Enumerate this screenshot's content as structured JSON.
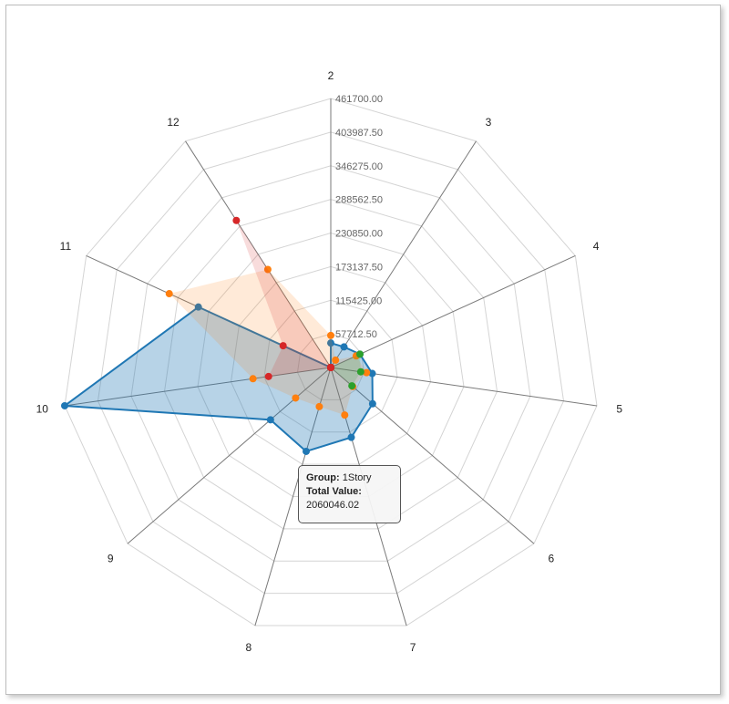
{
  "chart_data": {
    "type": "radar",
    "axes": [
      "2",
      "3",
      "4",
      "5",
      "6",
      "7",
      "8",
      "9",
      "10",
      "11",
      "12"
    ],
    "tick_labels": [
      "57712.50",
      "115425.00",
      "173137.50",
      "230850.00",
      "288562.50",
      "346275.00",
      "403987.50",
      "461700.00"
    ],
    "rmax": 461700,
    "grid": true,
    "series": [
      {
        "color": "#1f77b4",
        "values": [
          42000,
          42000,
          55000,
          72000,
          95000,
          125000,
          150000,
          137000,
          461700,
          250000,
          0
        ]
      },
      {
        "color": "#ff7f0e",
        "values": [
          55000,
          15000,
          48000,
          62000,
          50000,
          85000,
          70000,
          80000,
          135000,
          305000,
          200000
        ]
      },
      {
        "color": "#2ca02c",
        "values": [
          0,
          0,
          55000,
          52000,
          48000,
          0,
          0,
          0,
          0,
          0,
          0
        ]
      },
      {
        "color": "#d62728",
        "values": [
          0,
          0,
          0,
          0,
          0,
          0,
          0,
          0,
          108000,
          90000,
          300000
        ]
      }
    ]
  },
  "tooltip": {
    "group_label": "Group:",
    "group_value": "1Story",
    "total_label": "Total Value:",
    "total_value": "2060046.02"
  }
}
